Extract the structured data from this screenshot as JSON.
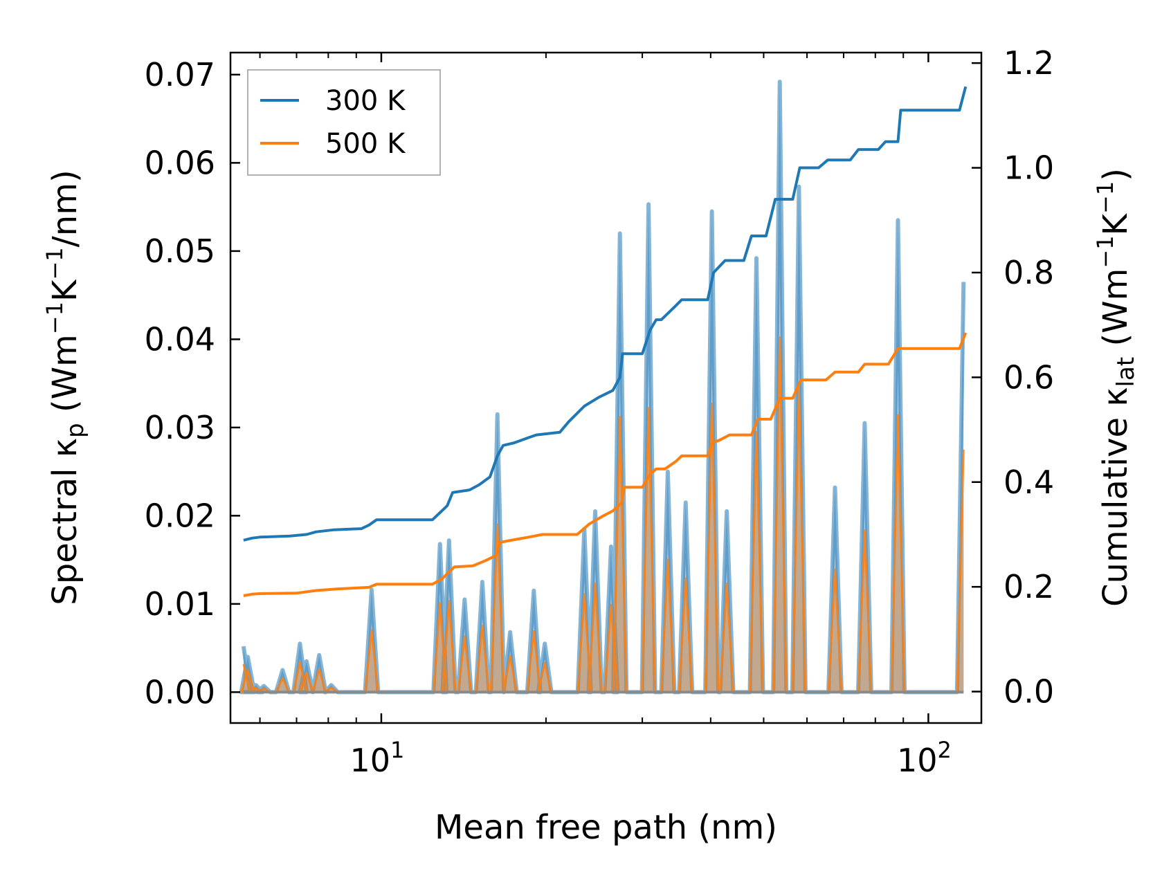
{
  "chart_data": {
    "type": "line",
    "xscale": "log",
    "xlim": [
      5.3,
      125
    ],
    "ylim_left": [
      -0.0035,
      0.0725
    ],
    "ylim_right": [
      -0.06,
      1.22
    ],
    "xlabel": "Mean free path (nm)",
    "ylabel_left": {
      "text": "Spectral κ",
      "sub": "p",
      "unit": " (Wm",
      "sup1": "−1",
      "mid": "K",
      "sup2": "−1",
      "end": "/nm)"
    },
    "ylabel_right": {
      "text": "Cumulative κ",
      "sub": "lat",
      "unit": " (Wm",
      "sup1": "−1",
      "mid": "K",
      "sup2": "−1",
      "end": ")"
    },
    "xticks_major": [
      {
        "base": "10",
        "exp": "1",
        "value": 10
      },
      {
        "base": "10",
        "exp": "2",
        "value": 100
      }
    ],
    "xticks_minor": [
      6,
      7,
      8,
      9,
      20,
      30,
      40,
      50,
      60,
      70,
      80,
      90
    ],
    "yticks_left": [
      "0.00",
      "0.01",
      "0.02",
      "0.03",
      "0.04",
      "0.05",
      "0.06",
      "0.07"
    ],
    "yticks_right": [
      "0.0",
      "0.2",
      "0.4",
      "0.6",
      "0.8",
      "1.0",
      "1.2"
    ],
    "legend": [
      {
        "label": "300 K",
        "color": "#1f77b4"
      },
      {
        "label": "500 K",
        "color": "#ff7f0e"
      }
    ],
    "spectral_baseline": 0.0,
    "spectral_300K": [
      [
        5.6,
        0.0052
      ],
      [
        5.7,
        0.004
      ],
      [
        5.9,
        0.0008
      ],
      [
        6.1,
        0.0007
      ],
      [
        6.6,
        0.0025
      ],
      [
        7.1,
        0.0055
      ],
      [
        7.3,
        0.0035
      ],
      [
        7.7,
        0.0042
      ],
      [
        8.1,
        0.0008
      ],
      [
        9.6,
        0.0116
      ],
      [
        12.8,
        0.0168
      ],
      [
        13.3,
        0.0172
      ],
      [
        14.2,
        0.0105
      ],
      [
        15.3,
        0.0125
      ],
      [
        16.3,
        0.0315
      ],
      [
        17.2,
        0.0068
      ],
      [
        19.0,
        0.0115
      ],
      [
        19.9,
        0.0055
      ],
      [
        23.5,
        0.0185
      ],
      [
        24.6,
        0.0205
      ],
      [
        26.3,
        0.0165
      ],
      [
        27.3,
        0.052
      ],
      [
        30.8,
        0.0553
      ],
      [
        33.4,
        0.025
      ],
      [
        36.0,
        0.0215
      ],
      [
        40.2,
        0.0545
      ],
      [
        42.8,
        0.0205
      ],
      [
        48.5,
        0.0492
      ],
      [
        53.5,
        0.0692
      ],
      [
        58.0,
        0.0573
      ],
      [
        67.5,
        0.0232
      ],
      [
        76.5,
        0.0305
      ],
      [
        88.0,
        0.0535
      ],
      [
        116.0,
        0.0465
      ]
    ],
    "spectral_500K": [
      [
        5.6,
        0.0032
      ],
      [
        5.7,
        0.0025
      ],
      [
        5.9,
        0.0005
      ],
      [
        6.1,
        0.0004
      ],
      [
        6.6,
        0.0016
      ],
      [
        7.1,
        0.0034
      ],
      [
        7.3,
        0.0022
      ],
      [
        7.7,
        0.0026
      ],
      [
        8.1,
        0.0005
      ],
      [
        9.6,
        0.007
      ],
      [
        12.8,
        0.0101
      ],
      [
        13.3,
        0.0103
      ],
      [
        14.2,
        0.0063
      ],
      [
        15.3,
        0.0075
      ],
      [
        16.3,
        0.019
      ],
      [
        17.2,
        0.0041
      ],
      [
        19.0,
        0.0069
      ],
      [
        19.9,
        0.0033
      ],
      [
        23.5,
        0.0111
      ],
      [
        24.6,
        0.0123
      ],
      [
        26.3,
        0.0099
      ],
      [
        27.3,
        0.0312
      ],
      [
        30.8,
        0.0322
      ],
      [
        33.4,
        0.015
      ],
      [
        36.0,
        0.0129
      ],
      [
        40.2,
        0.0327
      ],
      [
        42.8,
        0.0123
      ],
      [
        48.5,
        0.0295
      ],
      [
        53.5,
        0.0402
      ],
      [
        58.0,
        0.0344
      ],
      [
        67.5,
        0.0139
      ],
      [
        76.5,
        0.0183
      ],
      [
        88.0,
        0.0314
      ],
      [
        116.0,
        0.0275
      ]
    ],
    "cumulative_300K": [
      [
        5.6,
        0.289
      ],
      [
        5.8,
        0.293
      ],
      [
        6.0,
        0.295
      ],
      [
        6.8,
        0.297
      ],
      [
        7.3,
        0.3
      ],
      [
        7.6,
        0.305
      ],
      [
        8.2,
        0.309
      ],
      [
        9.2,
        0.311
      ],
      [
        9.5,
        0.318
      ],
      [
        9.8,
        0.328
      ],
      [
        12.4,
        0.328
      ],
      [
        12.9,
        0.345
      ],
      [
        13.2,
        0.355
      ],
      [
        13.5,
        0.38
      ],
      [
        14.5,
        0.385
      ],
      [
        15.1,
        0.395
      ],
      [
        15.8,
        0.41
      ],
      [
        16.3,
        0.45
      ],
      [
        16.7,
        0.47
      ],
      [
        17.5,
        0.475
      ],
      [
        18.6,
        0.485
      ],
      [
        19.2,
        0.49
      ],
      [
        21.2,
        0.495
      ],
      [
        22.0,
        0.515
      ],
      [
        23.5,
        0.545
      ],
      [
        25.0,
        0.562
      ],
      [
        26.5,
        0.575
      ],
      [
        27.3,
        0.6
      ],
      [
        27.6,
        0.645
      ],
      [
        30.0,
        0.645
      ],
      [
        31.0,
        0.69
      ],
      [
        31.8,
        0.71
      ],
      [
        32.5,
        0.71
      ],
      [
        34.4,
        0.735
      ],
      [
        35.4,
        0.748
      ],
      [
        39.5,
        0.748
      ],
      [
        40.5,
        0.8
      ],
      [
        42.5,
        0.823
      ],
      [
        46.0,
        0.823
      ],
      [
        47.5,
        0.87
      ],
      [
        50.5,
        0.87
      ],
      [
        52.5,
        0.94
      ],
      [
        56.5,
        0.94
      ],
      [
        58.2,
        1.0
      ],
      [
        63.0,
        1.0
      ],
      [
        65.5,
        1.015
      ],
      [
        72.0,
        1.015
      ],
      [
        74.5,
        1.035
      ],
      [
        81.0,
        1.035
      ],
      [
        83.5,
        1.05
      ],
      [
        88.0,
        1.05
      ],
      [
        89.0,
        1.11
      ],
      [
        114.0,
        1.11
      ],
      [
        117.0,
        1.155
      ]
    ],
    "cumulative_500K": [
      [
        5.6,
        0.183
      ],
      [
        5.8,
        0.186
      ],
      [
        6.0,
        0.187
      ],
      [
        7.0,
        0.188
      ],
      [
        7.6,
        0.193
      ],
      [
        8.3,
        0.196
      ],
      [
        9.5,
        0.199
      ],
      [
        9.8,
        0.205
      ],
      [
        12.4,
        0.205
      ],
      [
        12.9,
        0.215
      ],
      [
        13.2,
        0.225
      ],
      [
        13.6,
        0.238
      ],
      [
        14.7,
        0.24
      ],
      [
        15.5,
        0.25
      ],
      [
        16.2,
        0.26
      ],
      [
        16.5,
        0.285
      ],
      [
        17.5,
        0.29
      ],
      [
        18.6,
        0.295
      ],
      [
        19.7,
        0.3
      ],
      [
        20.8,
        0.3
      ],
      [
        22.8,
        0.3
      ],
      [
        24.0,
        0.32
      ],
      [
        25.4,
        0.335
      ],
      [
        26.5,
        0.345
      ],
      [
        27.5,
        0.36
      ],
      [
        27.8,
        0.39
      ],
      [
        30.0,
        0.39
      ],
      [
        31.0,
        0.415
      ],
      [
        31.8,
        0.425
      ],
      [
        33.0,
        0.425
      ],
      [
        34.6,
        0.44
      ],
      [
        35.4,
        0.45
      ],
      [
        39.5,
        0.45
      ],
      [
        40.3,
        0.475
      ],
      [
        41.5,
        0.48
      ],
      [
        43.3,
        0.49
      ],
      [
        47.5,
        0.49
      ],
      [
        48.8,
        0.52
      ],
      [
        51.5,
        0.52
      ],
      [
        53.5,
        0.56
      ],
      [
        56.5,
        0.56
      ],
      [
        58.5,
        0.595
      ],
      [
        65.0,
        0.595
      ],
      [
        67.5,
        0.61
      ],
      [
        74.5,
        0.61
      ],
      [
        76.5,
        0.625
      ],
      [
        84.5,
        0.625
      ],
      [
        88.0,
        0.655
      ],
      [
        114.0,
        0.655
      ],
      [
        117.0,
        0.685
      ]
    ]
  }
}
